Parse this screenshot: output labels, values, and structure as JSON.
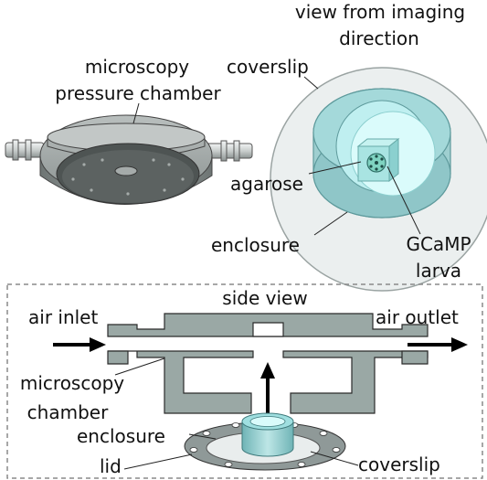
{
  "top_left": {
    "title_line1": "microscopy",
    "title_line2": "pressure chamber"
  },
  "top_right": {
    "title_line1": "view from imaging",
    "title_line2": "direction",
    "coverslip": "coverslip",
    "agarose": "agarose",
    "enclosure": "enclosure",
    "larva_line1": "GCaMP",
    "larva_line2": "larva"
  },
  "bottom": {
    "title": "side view",
    "air_inlet": "air inlet",
    "air_outlet": "air outlet",
    "chamber_line1": "microscopy",
    "chamber_line2": "chamber",
    "enclosure": "enclosure",
    "lid": "lid",
    "coverslip": "coverslip"
  },
  "colors": {
    "chamber_gray": "#8f9796",
    "side_view_gray": "#9aa8a5",
    "enclosure_teal": "#7fc4c6",
    "agarose_teal": "#a8e6e8",
    "coverslip_light": "#e8ecec",
    "larva_green": "#6fc9b8"
  }
}
